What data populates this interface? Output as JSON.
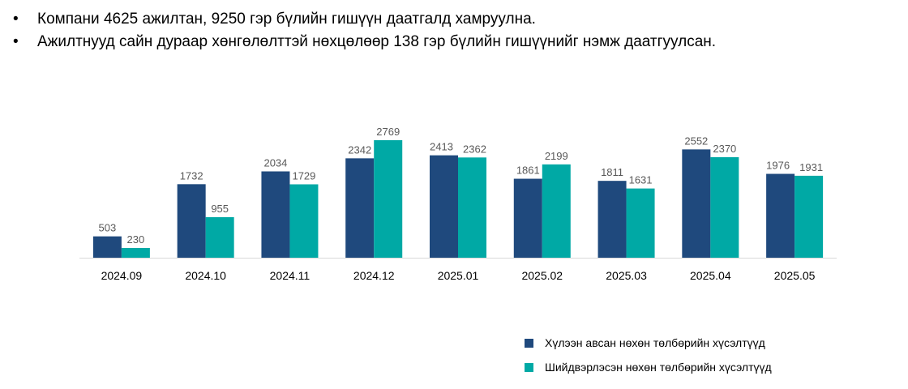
{
  "bullets": [
    "Компани 4625 ажилтан, 9250 гэр бүлийн гишүүн даатгалд хамруулна.",
    "Ажилтнууд сайн дураар хөнгөлөлттэй нөхцөлөөр 138 гэр бүлийн гишүүнийг нэмж даатгуулсан."
  ],
  "bullet_symbol": "•",
  "colors": {
    "series1": "#1F497D",
    "series2": "#00A9A5",
    "axis": "#D9D9D9",
    "label": "#595959"
  },
  "chart_data": {
    "type": "bar",
    "title": "",
    "xlabel": "",
    "ylabel": "",
    "categories": [
      "2024.09",
      "2024.10",
      "2024.11",
      "2024.12",
      "2025.01",
      "2025.02",
      "2025.03",
      "2025.04",
      "2025.05"
    ],
    "series": [
      {
        "name": "Хүлээн авсан нөхөн төлбөрийн хүсэлтүүд",
        "values": [
          503,
          1732,
          2034,
          2342,
          2413,
          1861,
          1811,
          2552,
          1976
        ]
      },
      {
        "name": "Шийдвэрлэсэн нөхөн төлбөрийн хүсэлтүүд",
        "values": [
          230,
          955,
          1729,
          2769,
          2362,
          2199,
          1631,
          2370,
          1931
        ]
      }
    ],
    "ylim": [
      0,
      2769
    ],
    "grid": false,
    "data_labels": true,
    "legend_position": "bottom-right"
  }
}
